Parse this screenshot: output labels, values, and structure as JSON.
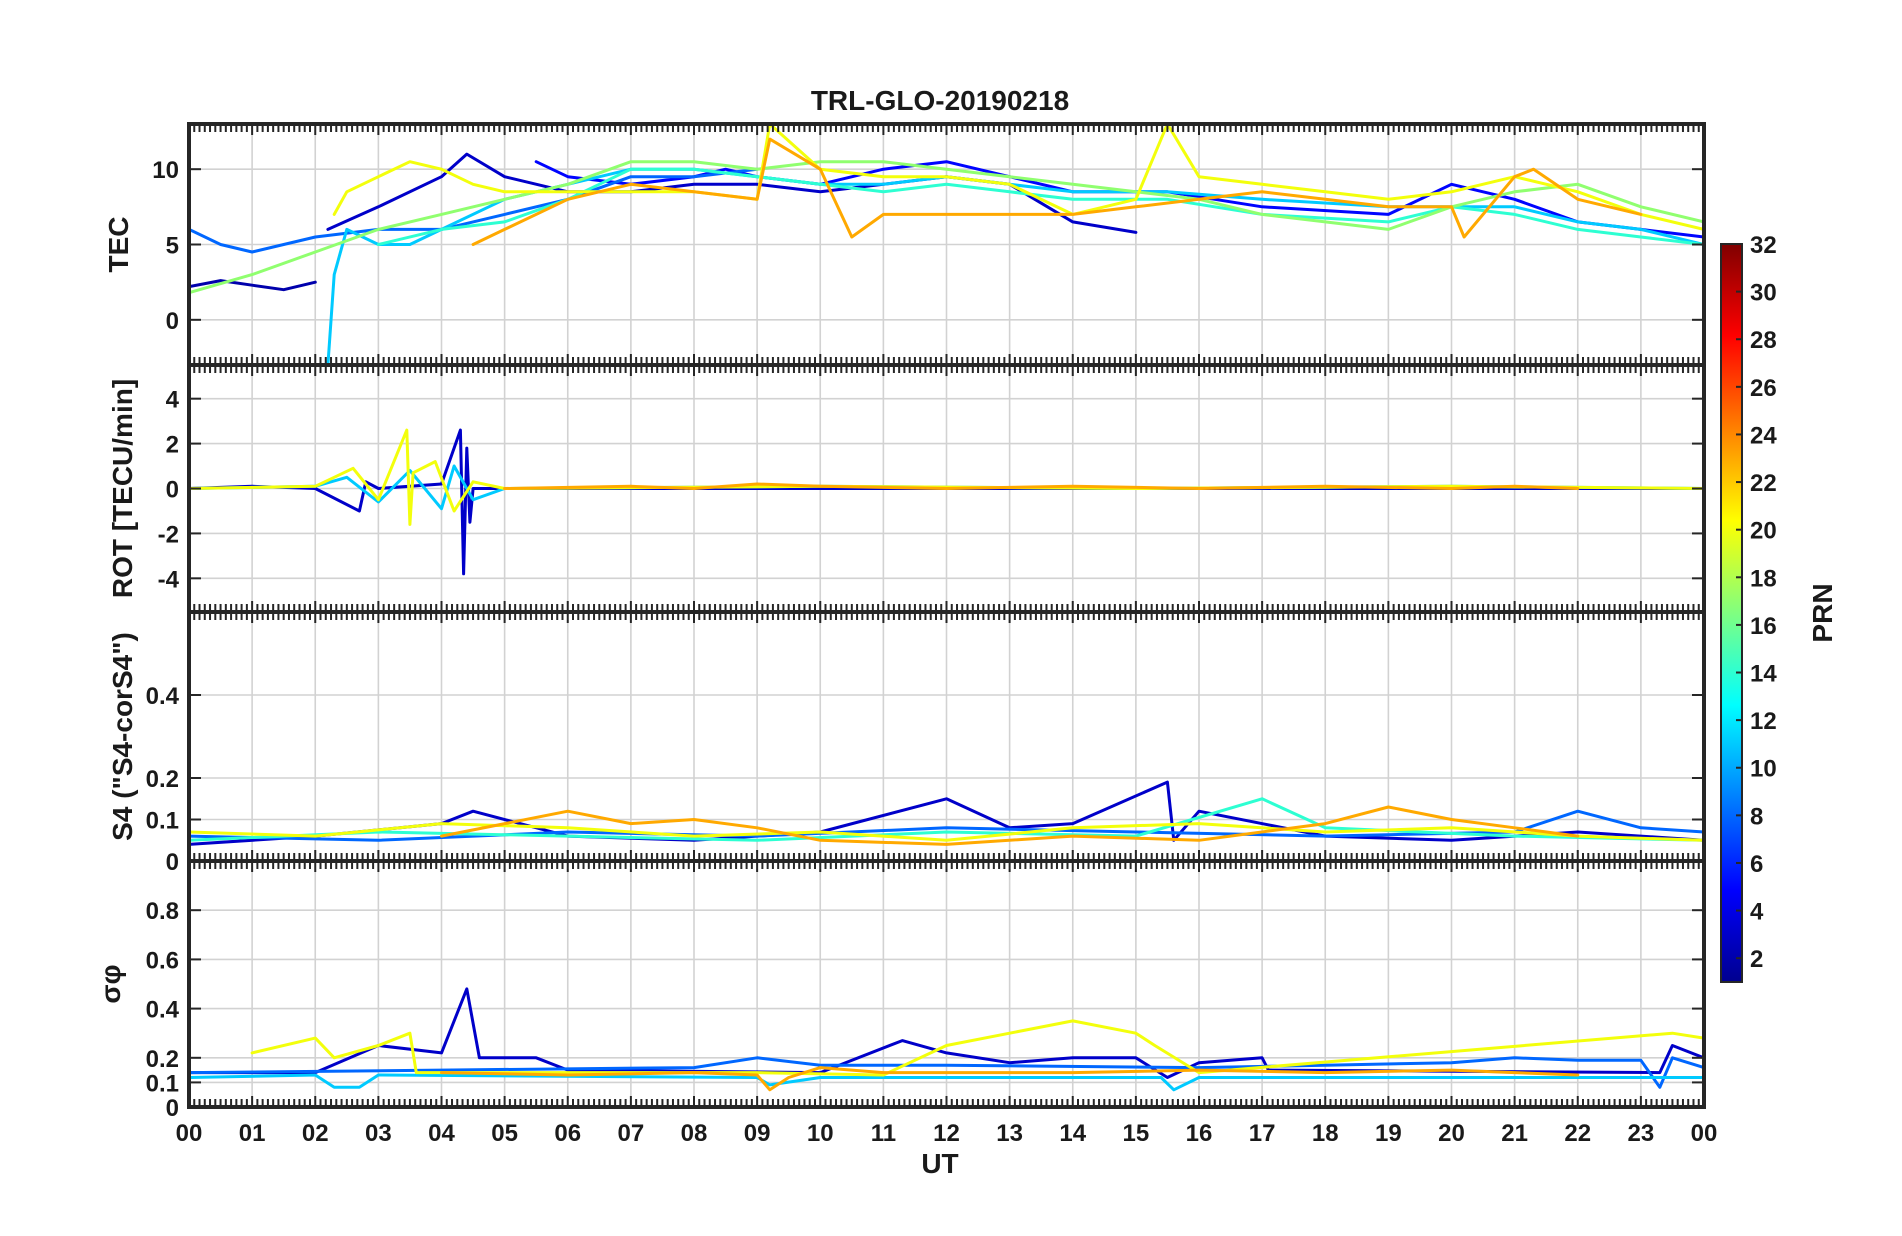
{
  "chart_data": {
    "type": "line",
    "title": "TRL-GLO-20190218",
    "xlabel": "UT",
    "x_tick_labels": [
      "00",
      "01",
      "02",
      "03",
      "04",
      "05",
      "06",
      "07",
      "08",
      "09",
      "10",
      "11",
      "12",
      "13",
      "14",
      "15",
      "16",
      "17",
      "18",
      "19",
      "20",
      "21",
      "22",
      "23",
      "00"
    ],
    "xlim": [
      0,
      24
    ],
    "grid": true,
    "colorbar": {
      "label": "PRN",
      "range": [
        1,
        32
      ],
      "ticks": [
        2,
        4,
        6,
        8,
        10,
        12,
        14,
        16,
        18,
        20,
        22,
        24,
        26,
        28,
        30,
        32
      ],
      "colormap": [
        "#00008f",
        "#0000ff",
        "#0080ff",
        "#00ffff",
        "#80ff80",
        "#ffff00",
        "#ff8000",
        "#ff0000",
        "#800000"
      ]
    },
    "panels": [
      {
        "id": "tec",
        "ylabel": "TEC",
        "ylim": [
          -3,
          13
        ],
        "yticks": [
          0,
          5,
          10
        ],
        "series": [
          {
            "prn": 2,
            "x": [
              0,
              0.5,
              1,
              1.5,
              2
            ],
            "y": [
              2.2,
              2.6,
              2.3,
              2.0,
              2.5
            ]
          },
          {
            "prn": 3,
            "x": [
              2.2,
              3,
              4,
              4.4,
              5,
              6,
              7,
              8,
              9,
              10,
              11,
              12,
              13,
              14,
              15
            ],
            "y": [
              6,
              7.5,
              9.5,
              11,
              9.5,
              8.5,
              8.5,
              9,
              9,
              8.5,
              9,
              9.5,
              9,
              6.5,
              5.8
            ]
          },
          {
            "prn": 5,
            "x": [
              5.5,
              6,
              7,
              8,
              8.5,
              9,
              10,
              11,
              12,
              13,
              14,
              15.5,
              17,
              19,
              20,
              21,
              22,
              23,
              24
            ],
            "y": [
              10.5,
              9.5,
              9,
              9.5,
              10,
              9.5,
              9,
              10,
              10.5,
              9.5,
              8.5,
              8.5,
              7.5,
              7,
              9,
              8,
              6.5,
              6,
              5.5
            ]
          },
          {
            "prn": 8,
            "x": [
              0,
              0.5,
              1,
              1.5,
              2,
              3,
              4,
              5,
              6,
              7,
              8,
              9
            ],
            "y": [
              6,
              5,
              4.5,
              5,
              5.5,
              6,
              6,
              7,
              8,
              9.5,
              9.5,
              10
            ]
          },
          {
            "prn": 11,
            "x": [
              2.2,
              2.3,
              2.5,
              3,
              3.5,
              4,
              5,
              6,
              7,
              8,
              9,
              10,
              11,
              12,
              13,
              14,
              15.5,
              17,
              19,
              21,
              22,
              23,
              24
            ],
            "y": [
              -3,
              3,
              6,
              5,
              5,
              6,
              8,
              9,
              10,
              10,
              9.5,
              9,
              9,
              9.5,
              9,
              8.5,
              8.5,
              8,
              7.5,
              7.5,
              6.5,
              6,
              5
            ]
          },
          {
            "prn": 14,
            "x": [
              3,
              4,
              5,
              6,
              7,
              8,
              9,
              10,
              11,
              12,
              13,
              14,
              15.5,
              17,
              19,
              20,
              21,
              22,
              23,
              24
            ],
            "y": [
              5,
              6,
              6.5,
              8,
              10,
              10,
              9.5,
              9,
              8.5,
              9,
              8.5,
              8,
              8,
              7,
              6.5,
              7.5,
              7,
              6,
              5.5,
              5
            ]
          },
          {
            "prn": 17,
            "x": [
              0,
              1,
              2,
              3,
              4,
              5,
              6,
              7,
              8,
              9,
              10,
              11,
              12,
              13,
              14,
              15,
              16,
              17,
              18,
              19,
              20,
              21,
              22,
              23,
              24
            ],
            "y": [
              1.8,
              3,
              4.5,
              6,
              7,
              8,
              9,
              10.5,
              10.5,
              10,
              10.5,
              10.5,
              10,
              9.5,
              9,
              8.5,
              8,
              7,
              6.5,
              6,
              7.5,
              8.5,
              9,
              7.5,
              6.5
            ]
          },
          {
            "prn": 20,
            "x": [
              2.3,
              2.5,
              3,
              3.5,
              4,
              4.5,
              5,
              6,
              7,
              8,
              9,
              9.2,
              10,
              11,
              12,
              13,
              14,
              15,
              15.5,
              16,
              17,
              18,
              19,
              20,
              21,
              22,
              23,
              24
            ],
            "y": [
              7,
              8.5,
              9.5,
              10.5,
              10,
              9,
              8.5,
              8.5,
              8.5,
              8.5,
              8,
              13,
              10,
              9.5,
              9.5,
              9,
              7,
              8,
              13,
              9.5,
              9,
              8.5,
              8,
              8.5,
              9.5,
              8.5,
              7,
              6
            ]
          },
          {
            "prn": 23,
            "x": [
              4.5,
              5,
              6,
              7,
              8,
              9,
              9.2,
              10,
              10.5,
              11,
              14,
              15,
              16,
              17,
              18,
              19,
              20,
              20.2,
              21,
              21.3,
              22,
              23
            ],
            "y": [
              5,
              6,
              8,
              9,
              8.5,
              8,
              12,
              10,
              5.5,
              7,
              7,
              7.5,
              8,
              8.5,
              8,
              7.5,
              7.5,
              5.5,
              9.5,
              10,
              8,
              7
            ]
          }
        ]
      },
      {
        "id": "rot",
        "ylabel": "ROT [TECU/min]",
        "ylim": [
          -5.5,
          5.5
        ],
        "yticks": [
          -4,
          -2,
          0,
          2,
          4
        ],
        "series": [
          {
            "prn": 3,
            "x": [
              0,
              1,
              2,
              2.7,
              2.8,
              3,
              4,
              4.3,
              4.35,
              4.4,
              4.45,
              4.5,
              5,
              10,
              15,
              20,
              24
            ],
            "y": [
              0,
              0.1,
              0,
              -1,
              0.3,
              0,
              0.2,
              2.6,
              -3.8,
              1.8,
              -1.5,
              0,
              0,
              0,
              0,
              0,
              0
            ]
          },
          {
            "prn": 11,
            "x": [
              0,
              2,
              2.5,
              3,
              3.5,
              4,
              4.2,
              4.5,
              5,
              10,
              15,
              20,
              24
            ],
            "y": [
              0,
              0.1,
              0.5,
              -0.6,
              0.8,
              -0.9,
              1,
              -0.5,
              0,
              0.1,
              0,
              0.1,
              0
            ]
          },
          {
            "prn": 20,
            "x": [
              0,
              2,
              2.6,
              3,
              3.45,
              3.5,
              3.55,
              3.9,
              4.2,
              4.5,
              5,
              10,
              15,
              20,
              24
            ],
            "y": [
              0,
              0.1,
              0.9,
              -0.5,
              2.6,
              -1.6,
              0.7,
              1.2,
              -1,
              0.3,
              0,
              0.1,
              0,
              0.1,
              0
            ]
          },
          {
            "prn": 23,
            "x": [
              5,
              7,
              8,
              9,
              10,
              12,
              14,
              16,
              18,
              20,
              21,
              22
            ],
            "y": [
              0,
              0.1,
              0,
              0.2,
              0.1,
              0,
              0.1,
              0,
              0.1,
              0,
              0.1,
              0
            ]
          }
        ]
      },
      {
        "id": "s4",
        "ylabel": "S4 (\"S4-corS4\")",
        "ylim": [
          0,
          0.6
        ],
        "yticks": [
          0,
          0.1,
          0.2,
          0.4
        ],
        "series": [
          {
            "prn": 3,
            "x": [
              0,
              2,
              4,
              4.5,
              6,
              8,
              10,
              12,
              13,
              14,
              15.5,
              15.6,
              16,
              18,
              20,
              22,
              24
            ],
            "y": [
              0.04,
              0.06,
              0.09,
              0.12,
              0.06,
              0.05,
              0.07,
              0.15,
              0.08,
              0.09,
              0.19,
              0.05,
              0.12,
              0.06,
              0.05,
              0.07,
              0.05
            ]
          },
          {
            "prn": 8,
            "x": [
              0,
              3,
              6,
              9,
              12,
              15,
              18,
              21,
              22,
              23,
              24
            ],
            "y": [
              0.06,
              0.05,
              0.07,
              0.06,
              0.08,
              0.07,
              0.06,
              0.07,
              0.12,
              0.08,
              0.07
            ]
          },
          {
            "prn": 14,
            "x": [
              0,
              3,
              6,
              9,
              12,
              15,
              17,
              18,
              21,
              24
            ],
            "y": [
              0.05,
              0.07,
              0.06,
              0.05,
              0.07,
              0.06,
              0.15,
              0.08,
              0.06,
              0.05
            ]
          },
          {
            "prn": 20,
            "x": [
              0,
              2,
              4,
              6,
              8,
              10,
              12,
              14,
              16,
              18,
              20,
              22,
              24
            ],
            "y": [
              0.07,
              0.06,
              0.09,
              0.08,
              0.06,
              0.07,
              0.05,
              0.08,
              0.09,
              0.07,
              0.08,
              0.06,
              0.05
            ]
          },
          {
            "prn": 23,
            "x": [
              4,
              6,
              7,
              8,
              9,
              10,
              12,
              14,
              16,
              18,
              19,
              20,
              21,
              22
            ],
            "y": [
              0.06,
              0.12,
              0.09,
              0.1,
              0.08,
              0.05,
              0.04,
              0.06,
              0.05,
              0.09,
              0.13,
              0.1,
              0.08,
              0.06
            ]
          }
        ]
      },
      {
        "id": "sigma",
        "ylabel": "σφ",
        "ylim": [
          0,
          1
        ],
        "yticks": [
          0,
          0.1,
          0.2,
          0.4,
          0.6,
          0.8
        ],
        "series": [
          {
            "prn": 3,
            "x": [
              0,
              2,
              3,
              4,
              4.4,
              4.6,
              5.5,
              6,
              10,
              11.3,
              12,
              13,
              14,
              15,
              15.5,
              16,
              17,
              17.1,
              23.3,
              23.5,
              24
            ],
            "y": [
              0.14,
              0.14,
              0.25,
              0.22,
              0.48,
              0.2,
              0.2,
              0.15,
              0.14,
              0.27,
              0.22,
              0.18,
              0.2,
              0.2,
              0.12,
              0.18,
              0.2,
              0.15,
              0.14,
              0.25,
              0.2
            ]
          },
          {
            "prn": 8,
            "x": [
              0,
              4,
              8,
              9,
              10,
              12,
              16,
              18,
              20,
              21,
              22,
              23,
              23.3,
              23.5,
              24
            ],
            "y": [
              0.14,
              0.15,
              0.16,
              0.2,
              0.17,
              0.17,
              0.16,
              0.17,
              0.18,
              0.2,
              0.19,
              0.19,
              0.08,
              0.2,
              0.16
            ]
          },
          {
            "prn": 11,
            "x": [
              0,
              2,
              2.3,
              2.7,
              3,
              9,
              9.2,
              10,
              15.4,
              15.6,
              16,
              24
            ],
            "y": [
              0.12,
              0.13,
              0.08,
              0.08,
              0.13,
              0.12,
              0.09,
              0.12,
              0.12,
              0.07,
              0.12,
              0.12
            ]
          },
          {
            "prn": 20,
            "x": [
              1,
              2,
              2.3,
              3,
              3.5,
              3.6,
              9,
              11,
              12,
              13,
              14,
              15,
              15.3,
              16,
              23.5,
              24
            ],
            "y": [
              0.22,
              0.28,
              0.2,
              0.25,
              0.3,
              0.14,
              0.14,
              0.13,
              0.25,
              0.3,
              0.35,
              0.3,
              0.25,
              0.14,
              0.3,
              0.28
            ]
          },
          {
            "prn": 23,
            "x": [
              4,
              6,
              8,
              9,
              9.2,
              9.5,
              10,
              11,
              14,
              16,
              18,
              20,
              21,
              22
            ],
            "y": [
              0.14,
              0.13,
              0.14,
              0.13,
              0.07,
              0.12,
              0.16,
              0.14,
              0.14,
              0.15,
              0.14,
              0.15,
              0.14,
              0.13
            ]
          }
        ]
      }
    ]
  }
}
